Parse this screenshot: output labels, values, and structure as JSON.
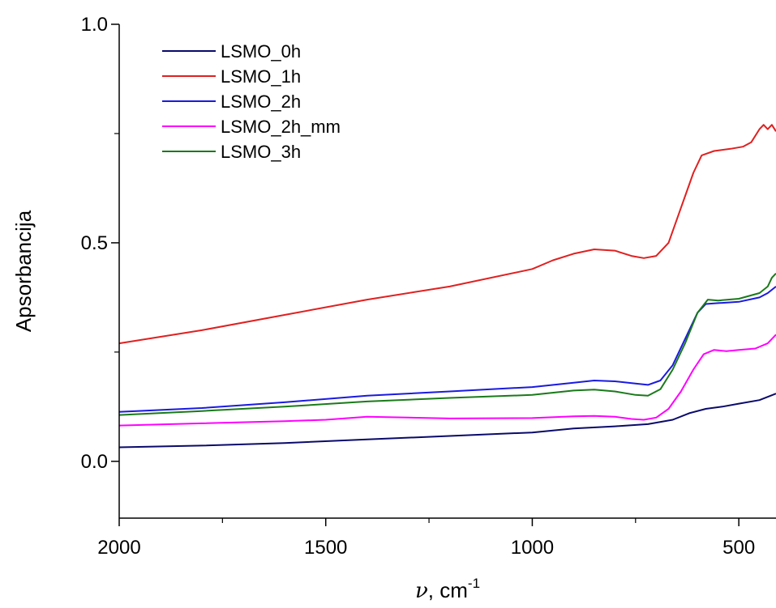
{
  "chart_data": {
    "type": "line",
    "title": "",
    "xlabel": {
      "symbol": "ν",
      "unit": "cm",
      "exp": "-1"
    },
    "ylabel": "Apsorbancija",
    "xlim": [
      2000,
      410
    ],
    "ylim": [
      -0.13,
      1.0
    ],
    "x_reversed": true,
    "x_ticks": [
      2000,
      1500,
      1000,
      500
    ],
    "x_tick_labels": [
      "2000",
      "1500",
      "1000",
      "500"
    ],
    "y_ticks": [
      0.0,
      0.5,
      1.0
    ],
    "y_tick_labels": [
      "0.0",
      "0.5",
      "1.0"
    ],
    "grid": false,
    "legend_position": "top-left",
    "series": [
      {
        "name": "LSMO_0h",
        "color": "#0a0a6b",
        "points": [
          [
            2000,
            0.032
          ],
          [
            1800,
            0.036
          ],
          [
            1600,
            0.042
          ],
          [
            1400,
            0.05
          ],
          [
            1200,
            0.058
          ],
          [
            1000,
            0.066
          ],
          [
            900,
            0.075
          ],
          [
            800,
            0.08
          ],
          [
            720,
            0.085
          ],
          [
            660,
            0.095
          ],
          [
            620,
            0.11
          ],
          [
            580,
            0.12
          ],
          [
            540,
            0.125
          ],
          [
            500,
            0.132
          ],
          [
            450,
            0.14
          ],
          [
            410,
            0.155
          ]
        ]
      },
      {
        "name": "LSMO_1h",
        "color": "#e02020",
        "points": [
          [
            2000,
            0.27
          ],
          [
            1800,
            0.3
          ],
          [
            1600,
            0.335
          ],
          [
            1400,
            0.37
          ],
          [
            1200,
            0.4
          ],
          [
            1000,
            0.44
          ],
          [
            950,
            0.46
          ],
          [
            900,
            0.475
          ],
          [
            850,
            0.485
          ],
          [
            800,
            0.482
          ],
          [
            760,
            0.47
          ],
          [
            730,
            0.465
          ],
          [
            700,
            0.47
          ],
          [
            670,
            0.5
          ],
          [
            640,
            0.58
          ],
          [
            610,
            0.66
          ],
          [
            590,
            0.7
          ],
          [
            560,
            0.71
          ],
          [
            520,
            0.715
          ],
          [
            490,
            0.72
          ],
          [
            470,
            0.73
          ],
          [
            450,
            0.76
          ],
          [
            440,
            0.77
          ],
          [
            430,
            0.76
          ],
          [
            420,
            0.77
          ],
          [
            410,
            0.755
          ]
        ]
      },
      {
        "name": "LSMO_2h",
        "color": "#1a1ae0",
        "points": [
          [
            2000,
            0.113
          ],
          [
            1800,
            0.122
          ],
          [
            1600,
            0.135
          ],
          [
            1400,
            0.15
          ],
          [
            1200,
            0.16
          ],
          [
            1000,
            0.17
          ],
          [
            900,
            0.18
          ],
          [
            850,
            0.185
          ],
          [
            800,
            0.183
          ],
          [
            750,
            0.178
          ],
          [
            720,
            0.175
          ],
          [
            690,
            0.185
          ],
          [
            660,
            0.22
          ],
          [
            630,
            0.28
          ],
          [
            600,
            0.34
          ],
          [
            580,
            0.36
          ],
          [
            550,
            0.362
          ],
          [
            500,
            0.365
          ],
          [
            450,
            0.375
          ],
          [
            430,
            0.385
          ],
          [
            410,
            0.4
          ]
        ]
      },
      {
        "name": "LSMO_2h_mm",
        "color": "#ff00ff",
        "points": [
          [
            2000,
            0.082
          ],
          [
            1800,
            0.087
          ],
          [
            1600,
            0.092
          ],
          [
            1500,
            0.095
          ],
          [
            1400,
            0.102
          ],
          [
            1300,
            0.1
          ],
          [
            1200,
            0.098
          ],
          [
            1000,
            0.099
          ],
          [
            900,
            0.103
          ],
          [
            850,
            0.104
          ],
          [
            800,
            0.102
          ],
          [
            760,
            0.097
          ],
          [
            730,
            0.095
          ],
          [
            700,
            0.1
          ],
          [
            670,
            0.12
          ],
          [
            640,
            0.16
          ],
          [
            610,
            0.21
          ],
          [
            585,
            0.245
          ],
          [
            560,
            0.255
          ],
          [
            530,
            0.252
          ],
          [
            500,
            0.255
          ],
          [
            460,
            0.258
          ],
          [
            430,
            0.27
          ],
          [
            410,
            0.29
          ]
        ]
      },
      {
        "name": "LSMO_3h",
        "color": "#1a7a1a",
        "points": [
          [
            2000,
            0.106
          ],
          [
            1800,
            0.115
          ],
          [
            1600,
            0.125
          ],
          [
            1400,
            0.137
          ],
          [
            1200,
            0.145
          ],
          [
            1000,
            0.152
          ],
          [
            900,
            0.162
          ],
          [
            850,
            0.164
          ],
          [
            800,
            0.16
          ],
          [
            750,
            0.152
          ],
          [
            720,
            0.15
          ],
          [
            690,
            0.165
          ],
          [
            660,
            0.21
          ],
          [
            630,
            0.27
          ],
          [
            600,
            0.34
          ],
          [
            575,
            0.37
          ],
          [
            550,
            0.368
          ],
          [
            500,
            0.372
          ],
          [
            450,
            0.385
          ],
          [
            430,
            0.4
          ],
          [
            420,
            0.42
          ],
          [
            410,
            0.43
          ]
        ]
      }
    ]
  }
}
